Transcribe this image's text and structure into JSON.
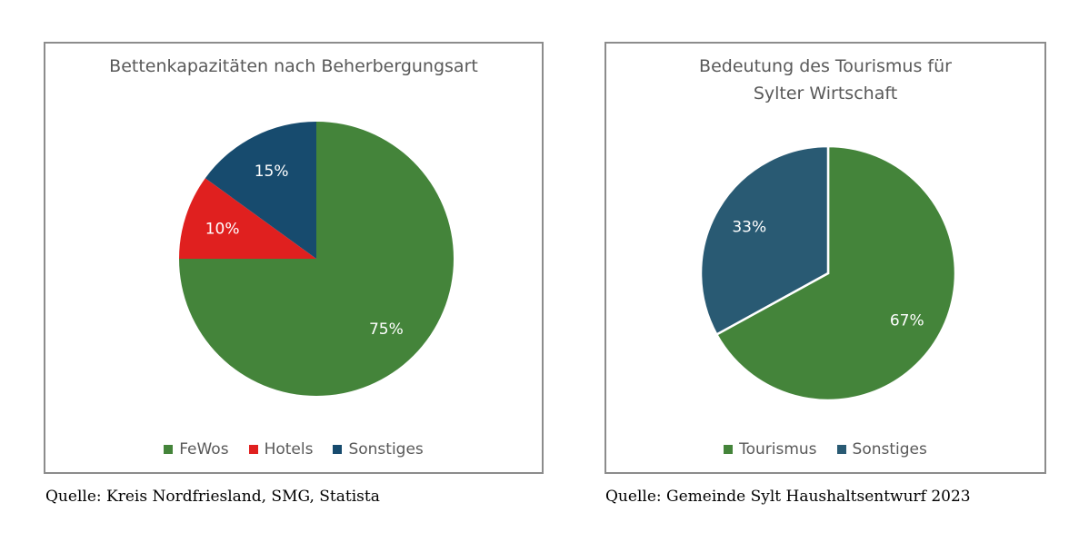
{
  "chart_data": [
    {
      "type": "pie",
      "title": "Bettenkapazitäten nach Beherbergungsart",
      "title_lines": [
        "Bettenkapazitäten nach Beherbergungsart"
      ],
      "categories": [
        "FeWos",
        "Hotels",
        "Sonstiges"
      ],
      "values": [
        75,
        10,
        15
      ],
      "labels": [
        "75%",
        "10%",
        "15%"
      ],
      "colors": [
        "#44843a",
        "#e0201f",
        "#174b6e"
      ],
      "legend_position": "bottom",
      "source": "Quelle: Kreis Nordfriesland, SMG, Statista"
    },
    {
      "type": "pie",
      "title": "Bedeutung des Tourismus für Sylter Wirtschaft",
      "title_lines": [
        "Bedeutung des Tourismus für",
        "Sylter Wirtschaft"
      ],
      "categories": [
        "Tourismus",
        "Sonstiges"
      ],
      "values": [
        67,
        33
      ],
      "labels": [
        "67%",
        "33%"
      ],
      "colors": [
        "#44843a",
        "#295a73"
      ],
      "legend_position": "bottom",
      "source": "Quelle: Gemeinde Sylt Haushaltsentwurf 2023"
    }
  ]
}
